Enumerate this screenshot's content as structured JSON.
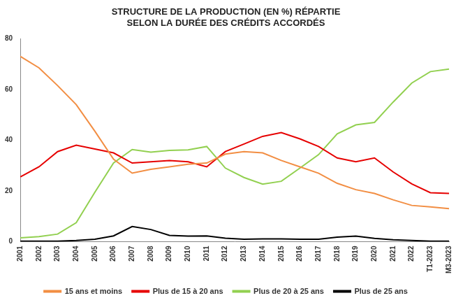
{
  "chart_data": {
    "type": "line",
    "title": [
      "STRUCTURE DE LA PRODUCTION (EN %) RÉPARTIE",
      "SELON LA DURÉE DES CRÉDITS ACCORDÉS"
    ],
    "categories": [
      "2001",
      "2002",
      "2003",
      "2004",
      "2005",
      "2006",
      "2007",
      "2008",
      "2009",
      "2010",
      "2011",
      "2012",
      "2013",
      "2014",
      "2015",
      "2016",
      "2017",
      "2018",
      "2019",
      "2020",
      "2021",
      "2022",
      "T1-2023",
      "M3-2023"
    ],
    "series": [
      {
        "name": "15 ans et moins",
        "color": "#f28e43",
        "values": [
          73,
          68.5,
          61.5,
          54,
          43.5,
          32.5,
          27,
          28.5,
          29.5,
          30.5,
          31,
          34.5,
          35.5,
          35,
          32,
          29.5,
          27,
          23,
          20.5,
          19,
          16.5,
          14.3,
          13.7,
          13
        ]
      },
      {
        "name": "Plus de 15 à 20 ans",
        "color": "#e60000",
        "values": [
          25.5,
          29.5,
          35.5,
          38,
          36.5,
          35,
          31,
          31.5,
          32,
          31.5,
          29.5,
          35.5,
          38.5,
          41.5,
          43,
          40.5,
          37.5,
          33,
          31.5,
          33,
          27.5,
          22.8,
          19.3,
          19
        ]
      },
      {
        "name": "Plus de 20 à 25 ans",
        "color": "#92d050",
        "values": [
          1.5,
          2,
          3,
          7.5,
          19.5,
          31,
          36.3,
          35.3,
          36,
          36.2,
          37.5,
          29,
          25.3,
          22.7,
          23.8,
          29,
          34.3,
          42.5,
          46,
          47,
          55,
          62.5,
          67,
          68
        ]
      },
      {
        "name": "Plus de 25 ans",
        "color": "#000000",
        "values": [
          0.2,
          0.2,
          0.2,
          0.5,
          1,
          2.3,
          6,
          4.8,
          2.5,
          2.2,
          2.3,
          1.4,
          1,
          1.1,
          1.1,
          1,
          1,
          1.8,
          2.2,
          1.3,
          0.8,
          0.5,
          0.2,
          0.2
        ]
      }
    ],
    "ylim": [
      0,
      80
    ],
    "yticks": [
      0,
      20,
      40,
      60,
      80
    ],
    "grid": false,
    "legend": "bottom"
  }
}
